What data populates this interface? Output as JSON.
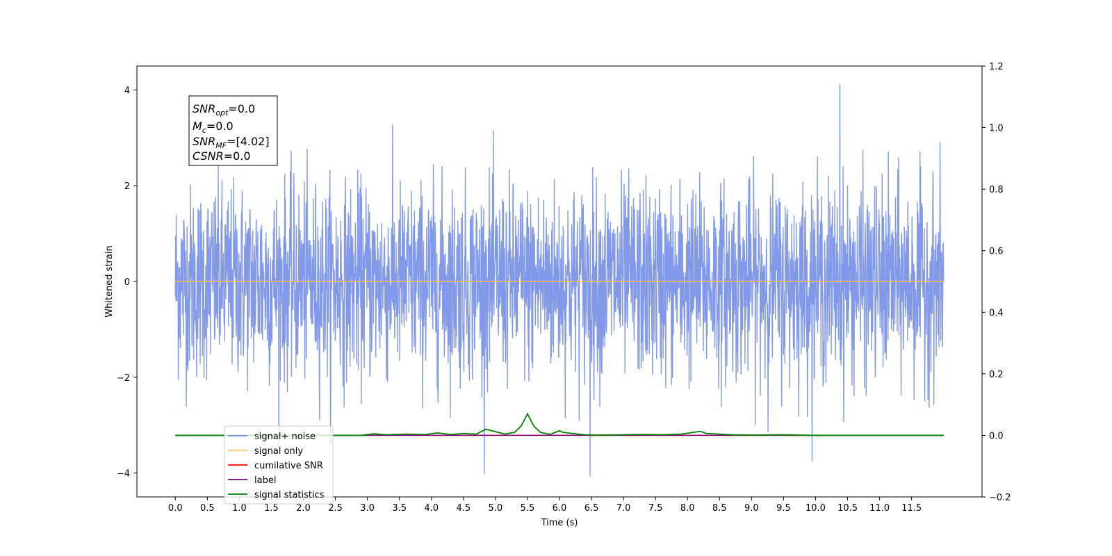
{
  "chart_data": {
    "type": "line",
    "xlabel": "Time (s)",
    "ylabel": "Whitened strain",
    "xlim": [
      -0.6,
      12.6
    ],
    "ylim": [
      -4.5,
      4.5
    ],
    "y2lim": [
      -0.2,
      1.2
    ],
    "x_ticks": [
      "0.0",
      "0.5",
      "1.0",
      "1.5",
      "2.0",
      "2.5",
      "3.0",
      "3.5",
      "4.0",
      "4.5",
      "5.0",
      "5.5",
      "6.0",
      "6.5",
      "7.0",
      "7.5",
      "8.0",
      "8.5",
      "9.0",
      "9.5",
      "10.0",
      "10.5",
      "11.0",
      "11.5"
    ],
    "y_ticks": [
      "−4",
      "−2",
      "0",
      "2",
      "4"
    ],
    "y2_ticks": [
      "−0.2",
      "0.0",
      "0.2",
      "0.4",
      "0.6",
      "0.8",
      "1.0",
      "1.2"
    ],
    "annotation": {
      "snr_opt": {
        "base": "SNR",
        "sub": "opt",
        "value": "=0.0"
      },
      "mc": {
        "base": "M",
        "sub": "c",
        "value": "=0.0"
      },
      "snr_mf": {
        "base": "SNR",
        "sub": "MF",
        "value": "=[4.02]"
      },
      "csnr": {
        "base": "CSNR",
        "value": "=0.0"
      }
    },
    "legend_position": "lower-left",
    "legend": [
      {
        "label": "signal+ noise",
        "color": "#6f8de6"
      },
      {
        "label": "signal only",
        "color": "#ffc966"
      },
      {
        "label": "cumilative SNR",
        "color": "#ff0000"
      },
      {
        "label": "label",
        "color": "#800080"
      },
      {
        "label": "signal statistics",
        "color": "#008000"
      }
    ],
    "series": [
      {
        "name": "signal+ noise",
        "color": "#7b94e8",
        "style": "gaussian-noise",
        "x_range": [
          0.0,
          12.0
        ],
        "sigma": 1.0,
        "observed_max": 4.12,
        "observed_min": -4.07,
        "axis": "left"
      },
      {
        "name": "signal only",
        "color": "#ffb84d",
        "x": [
          0.0,
          12.0
        ],
        "y": [
          0.0,
          0.0
        ],
        "axis": "left"
      },
      {
        "name": "cumilative SNR",
        "color": "#ff0000",
        "x": [
          0.0,
          12.0
        ],
        "y": [
          0.0,
          0.0
        ],
        "axis": "right"
      },
      {
        "name": "label",
        "color": "#800080",
        "x": [
          0.0,
          12.0
        ],
        "y": [
          0.0,
          0.0
        ],
        "axis": "right"
      },
      {
        "name": "signal statistics",
        "color": "#008000",
        "axis": "right",
        "x": [
          0.0,
          2.9,
          3.1,
          3.3,
          3.6,
          3.9,
          4.1,
          4.3,
          4.5,
          4.7,
          4.85,
          5.0,
          5.15,
          5.3,
          5.4,
          5.5,
          5.6,
          5.7,
          5.85,
          6.0,
          6.05,
          6.2,
          6.4,
          6.6,
          7.0,
          7.3,
          7.6,
          7.9,
          8.2,
          8.3,
          8.5,
          8.7,
          9.0,
          9.5,
          10.0,
          12.0
        ],
        "y": [
          0.0,
          0.0,
          0.005,
          0.002,
          0.004,
          0.003,
          0.008,
          0.003,
          0.006,
          0.004,
          0.02,
          0.012,
          0.004,
          0.01,
          0.03,
          0.07,
          0.03,
          0.01,
          0.003,
          0.015,
          0.01,
          0.006,
          0.002,
          0.001,
          0.002,
          0.003,
          0.002,
          0.004,
          0.013,
          0.006,
          0.004,
          0.002,
          0.001,
          0.002,
          0.0,
          0.0
        ]
      }
    ]
  }
}
